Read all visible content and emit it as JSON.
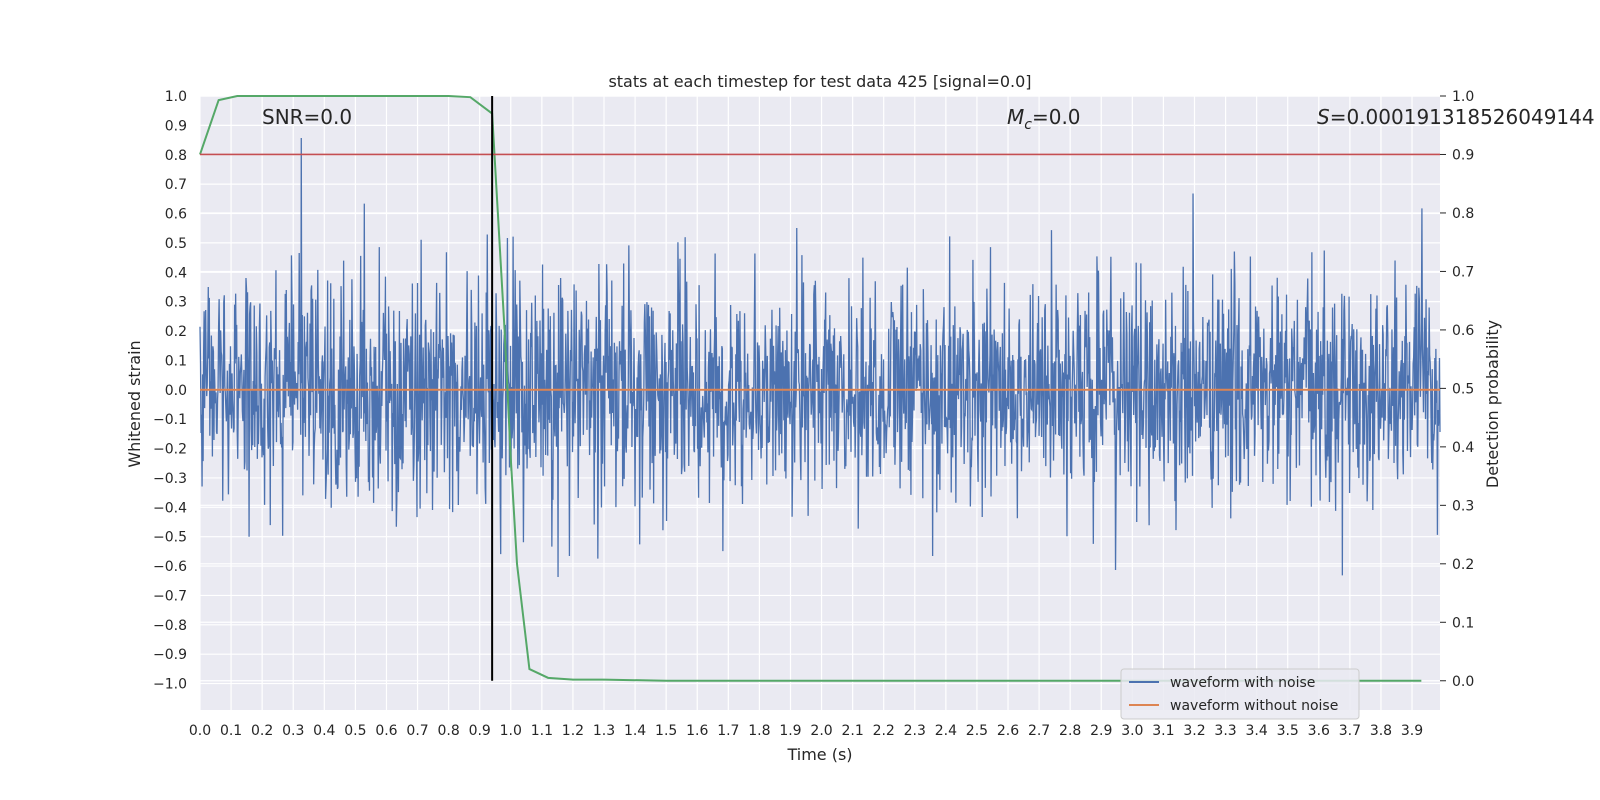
{
  "chart_data": {
    "type": "line",
    "title": "stats at each timestep for test data 425 [signal=0.0]",
    "xlabel": "Time (s)",
    "ylabel": "Whitened strain",
    "y2label": "Detection probability",
    "xlim": [
      0.0,
      3.99
    ],
    "ylim": [
      -1.09,
      1.0
    ],
    "y2lim": [
      -0.05,
      1.0
    ],
    "x_ticks": [
      "0.0",
      "0.1",
      "0.2",
      "0.3",
      "0.4",
      "0.5",
      "0.6",
      "0.7",
      "0.8",
      "0.9",
      "1.0",
      "1.1",
      "1.2",
      "1.3",
      "1.4",
      "1.5",
      "1.6",
      "1.7",
      "1.8",
      "1.9",
      "2.0",
      "2.1",
      "2.2",
      "2.3",
      "2.4",
      "2.5",
      "2.6",
      "2.7",
      "2.8",
      "2.9",
      "3.0",
      "3.1",
      "3.2",
      "3.3",
      "3.4",
      "3.5",
      "3.6",
      "3.7",
      "3.8",
      "3.9"
    ],
    "y_ticks": [
      "-1.0",
      "-0.9",
      "-0.8",
      "-0.7",
      "-0.6",
      "-0.5",
      "-0.4",
      "-0.3",
      "-0.2",
      "-0.1",
      "0.0",
      "0.1",
      "0.2",
      "0.3",
      "0.4",
      "0.5",
      "0.6",
      "0.7",
      "0.8",
      "0.9",
      "1.0"
    ],
    "y2_ticks": [
      "0.0",
      "0.1",
      "0.2",
      "0.3",
      "0.4",
      "0.5",
      "0.6",
      "0.7",
      "0.8",
      "0.9",
      "1.0"
    ],
    "annotations": {
      "snr": "SNR=0.0",
      "mc_symbol": "M",
      "mc_sub": "c",
      "mc_value": "=0.0",
      "s_symbol": "S",
      "s_value": "=0.000191318526049144"
    },
    "threshold_y2": 0.9,
    "vline_x": 0.94,
    "series": [
      {
        "name": "waveform with noise",
        "color": "#4c72b0",
        "axis": "left",
        "noise_sigma": 0.19,
        "peak_max": 0.91,
        "peak_min": -1.0,
        "duration": 3.99
      },
      {
        "name": "waveform without noise",
        "color": "#dd8452",
        "axis": "left",
        "x": [
          0.0,
          3.99
        ],
        "y": [
          0.0,
          0.0
        ]
      },
      {
        "name": "detection probability",
        "color": "#55a868",
        "axis": "right",
        "x": [
          0.0,
          0.06,
          0.12,
          0.2,
          0.4,
          0.6,
          0.8,
          0.87,
          0.94,
          0.98,
          1.0,
          1.02,
          1.06,
          1.12,
          1.2,
          1.3,
          1.5,
          2.0,
          3.0,
          3.93
        ],
        "y": [
          0.9,
          0.993,
          1.0,
          1.0,
          1.0,
          1.0,
          1.0,
          0.998,
          0.97,
          0.6,
          0.38,
          0.2,
          0.02,
          0.005,
          0.002,
          0.002,
          0.0,
          0.0,
          0.0,
          0.0
        ]
      }
    ],
    "legend": {
      "position": "lower right",
      "entries": [
        {
          "label": "waveform with noise",
          "color": "#4c72b0"
        },
        {
          "label": "waveform without noise",
          "color": "#dd8452"
        }
      ]
    },
    "colors": {
      "background": "#eaeaf2",
      "grid": "#ffffff",
      "threshold": "#c44e52",
      "vline": "#000000"
    }
  }
}
